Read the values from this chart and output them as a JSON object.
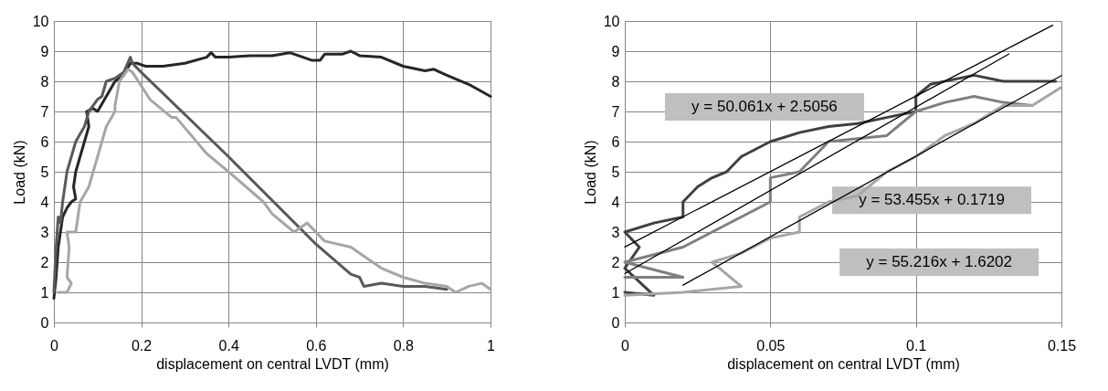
{
  "chart_data": [
    {
      "type": "line",
      "xlabel": "displacement  on central LVDT (mm)",
      "ylabel": "Load (kN)",
      "xlim": [
        0,
        1
      ],
      "xticks": [
        0,
        0.2,
        0.4,
        0.6,
        0.8,
        1
      ],
      "ylim": [
        0,
        10
      ],
      "yticks": [
        0,
        1,
        2,
        3,
        4,
        5,
        6,
        7,
        8,
        9,
        10
      ],
      "grid": true,
      "line_style": "solid",
      "series": [
        {
          "color": "#262626",
          "x": [
            0,
            0.005,
            0.01,
            0.015,
            0.02,
            0.03,
            0.04,
            0.05,
            0.045,
            0.05,
            0.06,
            0.07,
            0.08,
            0.075,
            0.09,
            0.1,
            0.12,
            0.14,
            0.16,
            0.175,
            0.19,
            0.21,
            0.25,
            0.3,
            0.35,
            0.36,
            0.37,
            0.4,
            0.45,
            0.5,
            0.54,
            0.56,
            0.59,
            0.61,
            0.62,
            0.66,
            0.68,
            0.7,
            0.75,
            0.8,
            0.85,
            0.87,
            0.9,
            0.95,
            1.0
          ],
          "values": [
            0.8,
            1.5,
            2.5,
            3.0,
            3.5,
            3.8,
            4.0,
            4.1,
            4.5,
            5.0,
            5.5,
            6.0,
            6.5,
            7.0,
            7.1,
            7.0,
            7.5,
            8.0,
            8.2,
            8.6,
            8.6,
            8.5,
            8.5,
            8.6,
            8.8,
            8.95,
            8.8,
            8.8,
            8.85,
            8.85,
            8.95,
            8.85,
            8.7,
            8.7,
            8.9,
            8.9,
            9.0,
            8.85,
            8.8,
            8.5,
            8.35,
            8.4,
            8.2,
            7.9,
            7.5
          ]
        },
        {
          "color": "#595959",
          "x": [
            0,
            0.005,
            0.01,
            0.015,
            0.02,
            0.03,
            0.04,
            0.05,
            0.07,
            0.08,
            0.1,
            0.11,
            0.12,
            0.14,
            0.16,
            0.175,
            0.18,
            0.2,
            0.4,
            0.6,
            0.68,
            0.7,
            0.71,
            0.75,
            0.8,
            0.85,
            0.9
          ],
          "values": [
            1.0,
            2.5,
            3.5,
            3.3,
            4.0,
            5.0,
            5.5,
            6.0,
            6.5,
            7.0,
            7.4,
            7.5,
            8.0,
            8.1,
            8.3,
            8.8,
            8.6,
            8.3,
            5.5,
            2.6,
            1.6,
            1.5,
            1.2,
            1.3,
            1.2,
            1.2,
            1.1
          ]
        },
        {
          "color": "#a6a6a6",
          "x": [
            0.01,
            0.03,
            0.04,
            0.03,
            0.035,
            0.03,
            0.05,
            0.06,
            0.08,
            0.09,
            0.1,
            0.11,
            0.12,
            0.14,
            0.14,
            0.15,
            0.17,
            0.18,
            0.22,
            0.27,
            0.28,
            0.35,
            0.4,
            0.48,
            0.5,
            0.55,
            0.57,
            0.58,
            0.62,
            0.68,
            0.75,
            0.8,
            0.85,
            0.9,
            0.92,
            0.95,
            0.98,
            1.0
          ],
          "values": [
            1.0,
            1.0,
            1.3,
            1.5,
            2.5,
            3.0,
            3.0,
            4.0,
            4.5,
            5.0,
            5.5,
            6.0,
            6.5,
            7.0,
            7.2,
            8.0,
            8.4,
            8.3,
            7.4,
            6.8,
            6.8,
            5.6,
            5.0,
            4.0,
            3.6,
            3.0,
            3.2,
            3.3,
            2.7,
            2.5,
            1.8,
            1.5,
            1.3,
            1.2,
            1.0,
            1.2,
            1.3,
            1.1
          ]
        }
      ]
    },
    {
      "type": "line",
      "xlabel": "displacement  on central LVDT (mm)",
      "ylabel": "Load (kN)",
      "xlim": [
        0,
        0.15
      ],
      "xticks": [
        0,
        0.05,
        0.1,
        0.15
      ],
      "ylim": [
        0,
        10
      ],
      "yticks": [
        0,
        1,
        2,
        3,
        4,
        5,
        6,
        7,
        8,
        9,
        10
      ],
      "grid": true,
      "line_style": "solid",
      "series": [
        {
          "color": "#404040",
          "x": [
            0,
            0.01,
            0,
            0.005,
            0,
            0.01,
            0.02,
            0.02,
            0.025,
            0.03,
            0.035,
            0.04,
            0.05,
            0.06,
            0.07,
            0.08,
            0.09,
            0.1,
            0.1,
            0.105,
            0.12,
            0.13,
            0.148
          ],
          "values": [
            1.0,
            0.9,
            1.8,
            2.5,
            3.0,
            3.3,
            3.5,
            4.0,
            4.5,
            4.8,
            5.0,
            5.5,
            6.0,
            6.3,
            6.5,
            6.6,
            6.8,
            7.0,
            7.5,
            7.9,
            8.2,
            8.0,
            8.0
          ]
        },
        {
          "color": "#7f7f7f",
          "x": [
            0,
            0.02,
            0,
            0.02,
            0.03,
            0.04,
            0.05,
            0.05,
            0.06,
            0.07,
            0.09,
            0.1,
            0.11,
            0.12,
            0.13,
            0.14
          ],
          "values": [
            1.5,
            1.5,
            2.0,
            2.5,
            3.0,
            3.5,
            4.0,
            4.8,
            5.0,
            6.0,
            6.2,
            7.0,
            7.3,
            7.5,
            7.3,
            7.2
          ]
        },
        {
          "color": "#a6a6a6",
          "x": [
            0,
            0.02,
            0.04,
            0.03,
            0.04,
            0.05,
            0.06,
            0.06,
            0.07,
            0.08,
            0.09,
            0.1,
            0.11,
            0.12,
            0.13,
            0.14,
            0.15
          ],
          "values": [
            0.9,
            1.0,
            1.2,
            2.0,
            2.3,
            2.8,
            3.0,
            3.5,
            4.0,
            4.2,
            5.0,
            5.5,
            6.2,
            6.6,
            7.2,
            7.2,
            7.8
          ]
        },
        {
          "type": "line",
          "color": "#000000",
          "x": [
            0,
            0.147
          ],
          "values": [
            2.5056,
            9.86
          ]
        },
        {
          "type": "line",
          "color": "#000000",
          "x": [
            0,
            0.132
          ],
          "values": [
            1.6202,
            8.91
          ]
        },
        {
          "type": "line",
          "color": "#000000",
          "x": [
            0.02,
            0.15
          ],
          "values": [
            1.24,
            8.19
          ]
        }
      ],
      "annotations": [
        "y = 50.061x + 2.5056",
        "y = 55.216x + 1.6202",
        "y = 53.455x + 0.1719"
      ]
    }
  ]
}
